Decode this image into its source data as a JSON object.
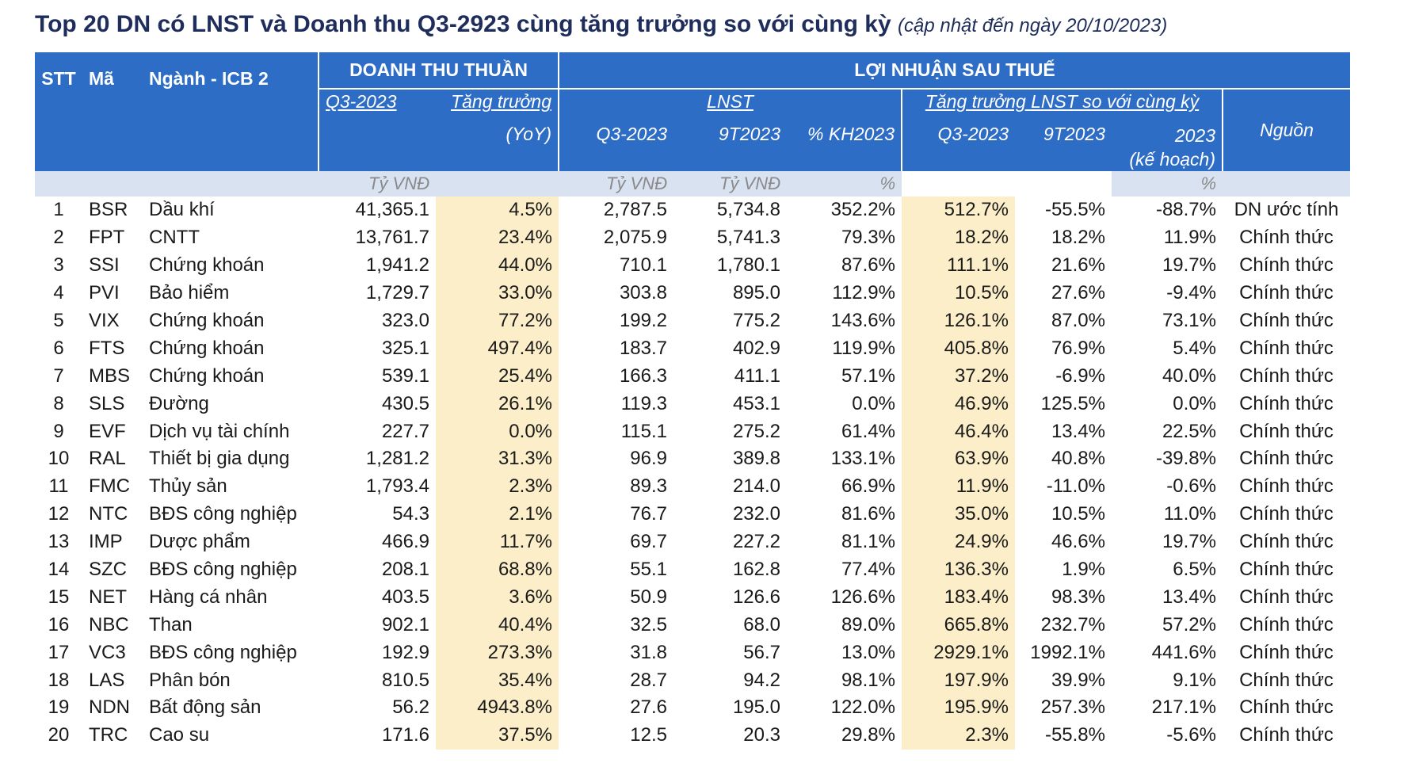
{
  "title": {
    "main": "Top 20 DN có LNST và Doanh thu Q3-2923 cùng tăng trưởng so với cùng kỳ",
    "note": "(cập nhật đến ngày 20/10/2023)"
  },
  "header": {
    "stt": "STT",
    "ma": "Mã",
    "nganh": "Ngành - ICB 2",
    "revenue_group": "DOANH THU THUẦN",
    "profit_group": "LỢI NHUẬN SAU THUẾ",
    "rev_q3": "Q3-2023",
    "rev_growth": "Tăng trưởng",
    "rev_growth_yoy": "(YoY)",
    "lnst": "LNST",
    "lnst_q3": "Q3-2023",
    "lnst_9t": "9T2023",
    "lnst_kh": "% KH2023",
    "growth_group": "Tăng trưởng LNST so với cùng kỳ",
    "g_q3": "Q3-2023",
    "g_9t": "9T2023",
    "g_2023": "2023",
    "g_2023_plan": "(kế hoạch)",
    "nguon": "Nguồn"
  },
  "units": {
    "rev": "Tỷ VNĐ",
    "lnst_q3": "Tỷ VNĐ",
    "lnst_9t": "Tỷ VNĐ",
    "kh": "%",
    "plan": "%"
  },
  "rows": [
    {
      "stt": "1",
      "ma": "BSR",
      "nganh": "Dầu khí",
      "rev": "41,365.1",
      "rev_g": "4.5%",
      "lnst_q3": "2,787.5",
      "lnst_9t": "5,734.8",
      "kh": "352.2%",
      "g_q3": "512.7%",
      "g_9t": "-55.5%",
      "g_plan": "-88.7%",
      "nguon": "DN ước tính"
    },
    {
      "stt": "2",
      "ma": "FPT",
      "nganh": "CNTT",
      "rev": "13,761.7",
      "rev_g": "23.4%",
      "lnst_q3": "2,075.9",
      "lnst_9t": "5,741.3",
      "kh": "79.3%",
      "g_q3": "18.2%",
      "g_9t": "18.2%",
      "g_plan": "11.9%",
      "nguon": "Chính thức"
    },
    {
      "stt": "3",
      "ma": "SSI",
      "nganh": "Chứng khoán",
      "rev": "1,941.2",
      "rev_g": "44.0%",
      "lnst_q3": "710.1",
      "lnst_9t": "1,780.1",
      "kh": "87.6%",
      "g_q3": "111.1%",
      "g_9t": "21.6%",
      "g_plan": "19.7%",
      "nguon": "Chính thức"
    },
    {
      "stt": "4",
      "ma": "PVI",
      "nganh": "Bảo hiểm",
      "rev": "1,729.7",
      "rev_g": "33.0%",
      "lnst_q3": "303.8",
      "lnst_9t": "895.0",
      "kh": "112.9%",
      "g_q3": "10.5%",
      "g_9t": "27.6%",
      "g_plan": "-9.4%",
      "nguon": "Chính thức"
    },
    {
      "stt": "5",
      "ma": "VIX",
      "nganh": "Chứng khoán",
      "rev": "323.0",
      "rev_g": "77.2%",
      "lnst_q3": "199.2",
      "lnst_9t": "775.2",
      "kh": "143.6%",
      "g_q3": "126.1%",
      "g_9t": "87.0%",
      "g_plan": "73.1%",
      "nguon": "Chính thức"
    },
    {
      "stt": "6",
      "ma": "FTS",
      "nganh": "Chứng khoán",
      "rev": "325.1",
      "rev_g": "497.4%",
      "lnst_q3": "183.7",
      "lnst_9t": "402.9",
      "kh": "119.9%",
      "g_q3": "405.8%",
      "g_9t": "76.9%",
      "g_plan": "5.4%",
      "nguon": "Chính thức"
    },
    {
      "stt": "7",
      "ma": "MBS",
      "nganh": "Chứng khoán",
      "rev": "539.1",
      "rev_g": "25.4%",
      "lnst_q3": "166.3",
      "lnst_9t": "411.1",
      "kh": "57.1%",
      "g_q3": "37.2%",
      "g_9t": "-6.9%",
      "g_plan": "40.0%",
      "nguon": "Chính thức"
    },
    {
      "stt": "8",
      "ma": "SLS",
      "nganh": "Đường",
      "rev": "430.5",
      "rev_g": "26.1%",
      "lnst_q3": "119.3",
      "lnst_9t": "453.1",
      "kh": "0.0%",
      "g_q3": "46.9%",
      "g_9t": "125.5%",
      "g_plan": "0.0%",
      "nguon": "Chính thức"
    },
    {
      "stt": "9",
      "ma": "EVF",
      "nganh": "Dịch vụ tài chính",
      "rev": "227.7",
      "rev_g": "0.0%",
      "lnst_q3": "115.1",
      "lnst_9t": "275.2",
      "kh": "61.4%",
      "g_q3": "46.4%",
      "g_9t": "13.4%",
      "g_plan": "22.5%",
      "nguon": "Chính thức"
    },
    {
      "stt": "10",
      "ma": "RAL",
      "nganh": "Thiết bị gia dụng",
      "rev": "1,281.2",
      "rev_g": "31.3%",
      "lnst_q3": "96.9",
      "lnst_9t": "389.8",
      "kh": "133.1%",
      "g_q3": "63.9%",
      "g_9t": "40.8%",
      "g_plan": "-39.8%",
      "nguon": "Chính thức"
    },
    {
      "stt": "11",
      "ma": "FMC",
      "nganh": "Thủy sản",
      "rev": "1,793.4",
      "rev_g": "2.3%",
      "lnst_q3": "89.3",
      "lnst_9t": "214.0",
      "kh": "66.9%",
      "g_q3": "11.9%",
      "g_9t": "-11.0%",
      "g_plan": "-0.6%",
      "nguon": "Chính thức"
    },
    {
      "stt": "12",
      "ma": "NTC",
      "nganh": "BĐS công nghiệp",
      "rev": "54.3",
      "rev_g": "2.1%",
      "lnst_q3": "76.7",
      "lnst_9t": "232.0",
      "kh": "81.6%",
      "g_q3": "35.0%",
      "g_9t": "10.5%",
      "g_plan": "11.0%",
      "nguon": "Chính thức"
    },
    {
      "stt": "13",
      "ma": "IMP",
      "nganh": "Dược phẩm",
      "rev": "466.9",
      "rev_g": "11.7%",
      "lnst_q3": "69.7",
      "lnst_9t": "227.2",
      "kh": "81.1%",
      "g_q3": "24.9%",
      "g_9t": "46.6%",
      "g_plan": "19.7%",
      "nguon": "Chính thức"
    },
    {
      "stt": "14",
      "ma": "SZC",
      "nganh": "BĐS công nghiệp",
      "rev": "208.1",
      "rev_g": "68.8%",
      "lnst_q3": "55.1",
      "lnst_9t": "162.8",
      "kh": "77.4%",
      "g_q3": "136.3%",
      "g_9t": "1.9%",
      "g_plan": "6.5%",
      "nguon": "Chính thức"
    },
    {
      "stt": "15",
      "ma": "NET",
      "nganh": "Hàng cá nhân",
      "rev": "403.5",
      "rev_g": "3.6%",
      "lnst_q3": "50.9",
      "lnst_9t": "126.6",
      "kh": "126.6%",
      "g_q3": "183.4%",
      "g_9t": "98.3%",
      "g_plan": "13.4%",
      "nguon": "Chính thức"
    },
    {
      "stt": "16",
      "ma": "NBC",
      "nganh": "Than",
      "rev": "902.1",
      "rev_g": "40.4%",
      "lnst_q3": "32.5",
      "lnst_9t": "68.0",
      "kh": "89.0%",
      "g_q3": "665.8%",
      "g_9t": "232.7%",
      "g_plan": "57.2%",
      "nguon": "Chính thức"
    },
    {
      "stt": "17",
      "ma": "VC3",
      "nganh": "BĐS công nghiệp",
      "rev": "192.9",
      "rev_g": "273.3%",
      "lnst_q3": "31.8",
      "lnst_9t": "56.7",
      "kh": "13.0%",
      "g_q3": "2929.1%",
      "g_9t": "1992.1%",
      "g_plan": "441.6%",
      "nguon": "Chính thức"
    },
    {
      "stt": "18",
      "ma": "LAS",
      "nganh": "Phân bón",
      "rev": "810.5",
      "rev_g": "35.4%",
      "lnst_q3": "28.7",
      "lnst_9t": "94.2",
      "kh": "98.1%",
      "g_q3": "197.9%",
      "g_9t": "39.9%",
      "g_plan": "9.1%",
      "nguon": "Chính thức"
    },
    {
      "stt": "19",
      "ma": "NDN",
      "nganh": "Bất động sản",
      "rev": "56.2",
      "rev_g": "4943.8%",
      "lnst_q3": "27.6",
      "lnst_9t": "195.0",
      "kh": "122.0%",
      "g_q3": "195.9%",
      "g_9t": "257.3%",
      "g_plan": "217.1%",
      "nguon": "Chính thức"
    },
    {
      "stt": "20",
      "ma": "TRC",
      "nganh": "Cao su",
      "rev": "171.6",
      "rev_g": "37.5%",
      "lnst_q3": "12.5",
      "lnst_9t": "20.3",
      "kh": "29.8%",
      "g_q3": "2.3%",
      "g_9t": "-55.8%",
      "g_plan": "-5.6%",
      "nguon": "Chính thức"
    }
  ],
  "colors": {
    "header_bg": "#2e6dc6",
    "title_text": "#1f2d5c",
    "units_bg": "#d8e2f1",
    "highlight_bg": "#fbeec8",
    "negative_text": "#c0282b"
  }
}
